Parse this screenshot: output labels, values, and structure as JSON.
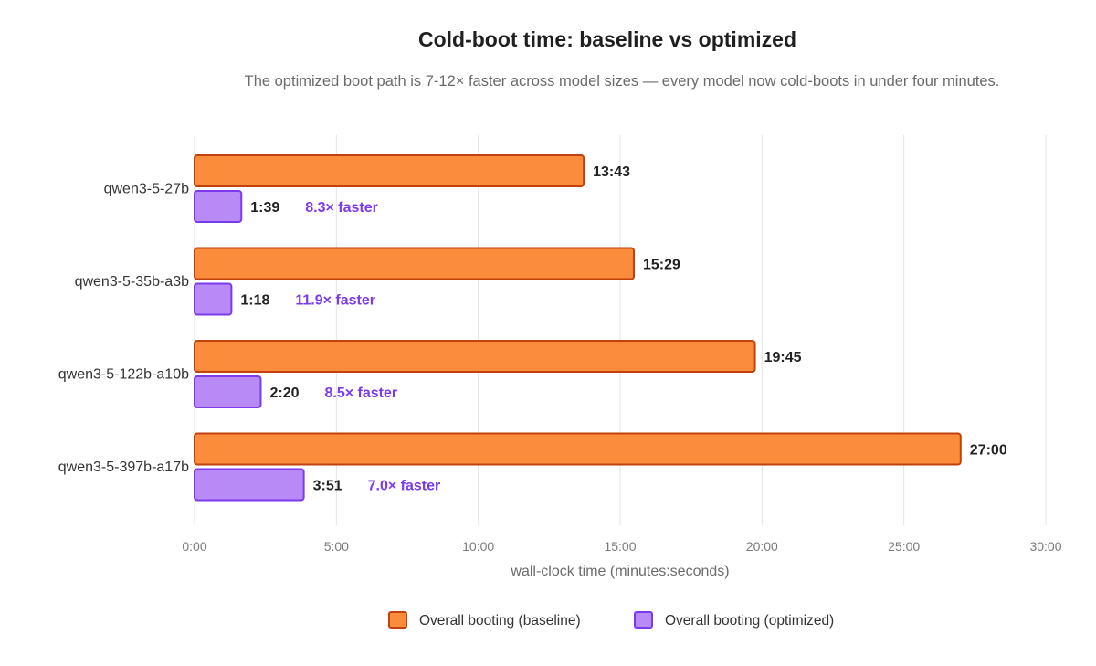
{
  "chart_data": {
    "type": "bar",
    "orientation": "horizontal",
    "title": "Cold-boot time: baseline vs optimized",
    "subtitle": "The optimized boot path is 7-12× faster across model sizes — every model now cold-boots in under four minutes.",
    "xlabel": "wall-clock time (minutes:seconds)",
    "xlim_seconds": [
      0,
      1800
    ],
    "x_ticks": [
      "0:00",
      "5:00",
      "10:00",
      "15:00",
      "20:00",
      "25:00",
      "30:00"
    ],
    "grid": true,
    "legend_position": "bottom",
    "categories": [
      "qwen3-5-27b",
      "qwen3-5-35b-a3b",
      "qwen3-5-122b-a10b",
      "qwen3-5-397b-a17b"
    ],
    "series": [
      {
        "name": "Overall booting (baseline)",
        "color": "#fb8c3c",
        "stroke": "#c2410c",
        "values_seconds": [
          823,
          929,
          1185,
          1620
        ],
        "labels": [
          "13:43",
          "15:29",
          "19:45",
          "27:00"
        ]
      },
      {
        "name": "Overall booting (optimized)",
        "color": "#b78af5",
        "stroke": "#7c3aed",
        "values_seconds": [
          99,
          78,
          140,
          231
        ],
        "labels": [
          "1:39",
          "1:18",
          "2:20",
          "3:51"
        ]
      }
    ],
    "annotations": [
      "8.3× faster",
      "11.9× faster",
      "8.5× faster",
      "7.0× faster"
    ]
  }
}
